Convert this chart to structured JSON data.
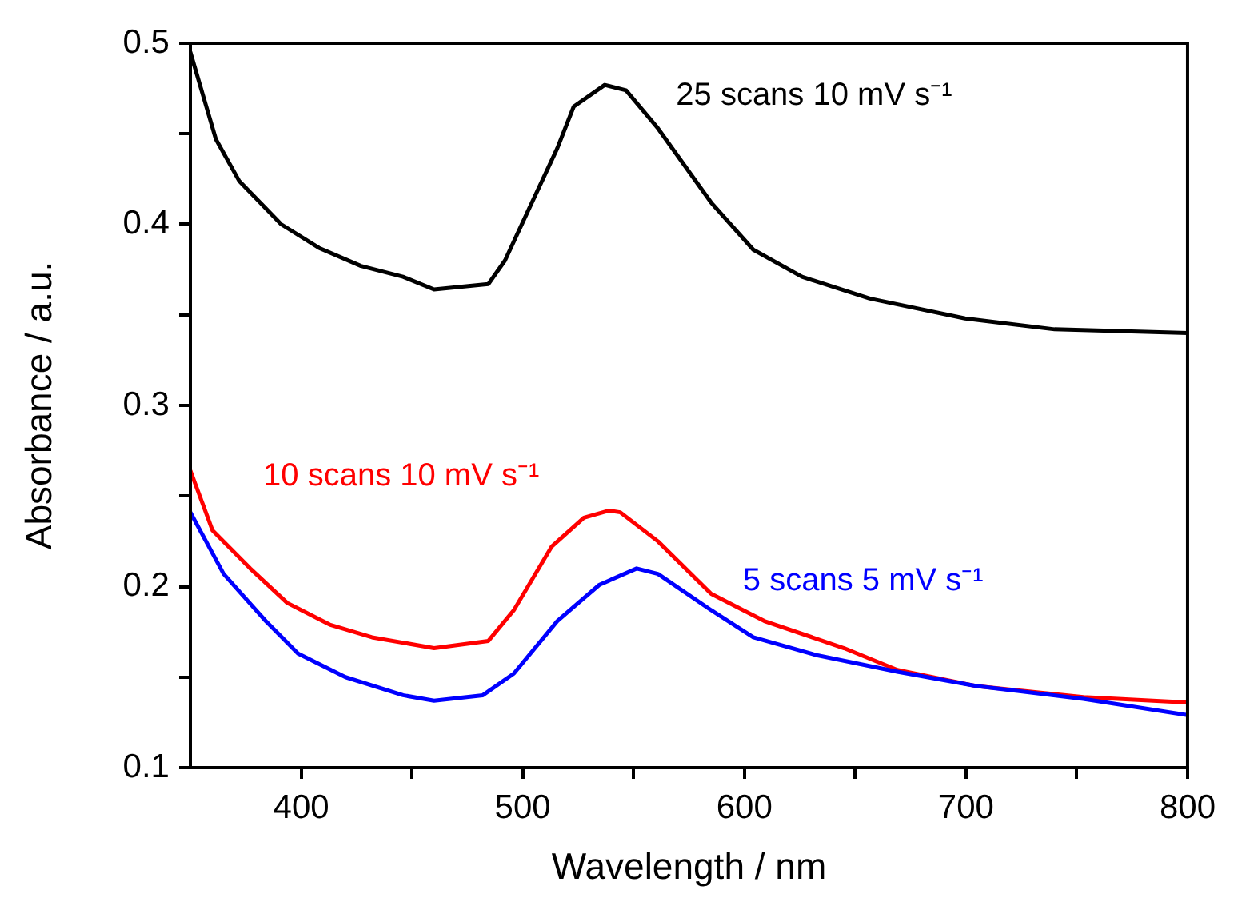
{
  "chart_data": {
    "type": "line",
    "xlabel": "Wavelength / nm",
    "ylabel": "Absorbance / a.u.",
    "xlim": [
      350,
      800
    ],
    "ylim": [
      0.1,
      0.5
    ],
    "xticks": [
      400,
      {
        "value": 450,
        "label": null
      },
      500,
      {
        "value": 550,
        "label": null
      },
      600,
      {
        "value": 650,
        "label": null
      },
      700,
      {
        "value": 750,
        "label": null
      },
      800
    ],
    "yticks": [
      0.1,
      {
        "value": 0.15,
        "label": null
      },
      0.2,
      {
        "value": 0.25,
        "label": null
      },
      0.3,
      {
        "value": 0.35,
        "label": null
      },
      0.4,
      {
        "value": 0.45,
        "label": null
      },
      0.5
    ],
    "marker": "none",
    "line_style": "solid",
    "series": [
      {
        "name": "25 scans 10 mV s⁻¹",
        "color": "#000000",
        "x": [
          350,
          361.5,
          372,
          391,
          408,
          427,
          446,
          460,
          484.5,
          492,
          503,
          515.6,
          523,
          537,
          546.6,
          561,
          585,
          604,
          626,
          656.6,
          699.6,
          740,
          800
        ],
        "values": [
          0.495,
          0.447,
          0.424,
          0.4,
          0.387,
          0.377,
          0.371,
          0.364,
          0.367,
          0.38,
          0.409,
          0.442,
          0.465,
          0.477,
          0.474,
          0.453,
          0.412,
          0.386,
          0.371,
          0.359,
          0.348,
          0.342,
          0.34
        ]
      },
      {
        "name": "10 scans 10 mV s⁻¹",
        "color": "#ff0000",
        "x": [
          350,
          360,
          377,
          393.7,
          412.9,
          432,
          460,
          484.5,
          496,
          513,
          527.6,
          539,
          544,
          561,
          585,
          609,
          645,
          669,
          705,
          753,
          800
        ],
        "values": [
          0.264,
          0.231,
          0.21,
          0.191,
          0.179,
          0.172,
          0.166,
          0.17,
          0.187,
          0.222,
          0.238,
          0.242,
          0.241,
          0.225,
          0.196,
          0.181,
          0.166,
          0.154,
          0.145,
          0.139,
          0.136
        ]
      },
      {
        "name": "5 scans 5 mV s⁻¹",
        "color": "#0000ff",
        "x": [
          350,
          365,
          384,
          398.6,
          420,
          446,
          460,
          482,
          496,
          515.6,
          534.6,
          551.4,
          561,
          585,
          604,
          633,
          669,
          705,
          753,
          800
        ],
        "values": [
          0.241,
          0.207,
          0.181,
          0.163,
          0.15,
          0.14,
          0.137,
          0.14,
          0.152,
          0.181,
          0.201,
          0.21,
          0.207,
          0.187,
          0.172,
          0.162,
          0.153,
          0.145,
          0.138,
          0.129
        ]
      }
    ]
  }
}
